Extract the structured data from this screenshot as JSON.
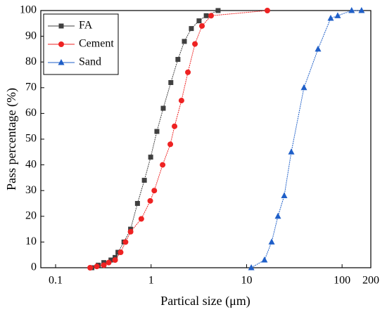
{
  "chart_data": {
    "type": "line",
    "x_label": "Partical size (μm)",
    "y_label": "Pass percentage (%)",
    "x_scale": "log",
    "xlim": [
      0.07,
      200
    ],
    "ylim": [
      0,
      100
    ],
    "xticks": [
      0.1,
      1,
      10,
      100,
      200
    ],
    "yticks": [
      0,
      10,
      20,
      30,
      40,
      50,
      60,
      70,
      80,
      90,
      100
    ],
    "legend": "upper left",
    "series": [
      {
        "name": "FA",
        "color": "#404040",
        "marker": "square",
        "x": [
          0.24,
          0.28,
          0.32,
          0.38,
          0.42,
          0.45,
          0.52,
          0.61,
          0.72,
          0.85,
          0.99,
          1.15,
          1.34,
          1.61,
          1.91,
          2.23,
          2.64,
          3.18,
          3.78,
          5.03
        ],
        "values": [
          0,
          1,
          2,
          3,
          4,
          6,
          10,
          15,
          25,
          34,
          43,
          53,
          62,
          72,
          81,
          88,
          93,
          96,
          98,
          100
        ]
      },
      {
        "name": "Cement",
        "color": "#ee2222",
        "marker": "circle",
        "x": [
          0.23,
          0.27,
          0.32,
          0.36,
          0.42,
          0.48,
          0.54,
          0.61,
          0.79,
          0.98,
          1.08,
          1.32,
          1.59,
          1.76,
          2.08,
          2.43,
          2.88,
          3.41,
          4.25,
          16.5
        ],
        "values": [
          0,
          0.5,
          1,
          2,
          3,
          6,
          10,
          14,
          19,
          26,
          30,
          40,
          48,
          55,
          65,
          76,
          87,
          94,
          98,
          100
        ]
      },
      {
        "name": "Sand",
        "color": "#1f5fc8",
        "marker": "triangle",
        "x": [
          11.2,
          15.4,
          18.3,
          21.3,
          24.8,
          29.4,
          39.9,
          56,
          76,
          90,
          126,
          160
        ],
        "values": [
          0,
          3,
          10,
          20,
          28,
          45,
          70,
          85,
          97,
          98,
          100,
          100
        ]
      }
    ]
  }
}
